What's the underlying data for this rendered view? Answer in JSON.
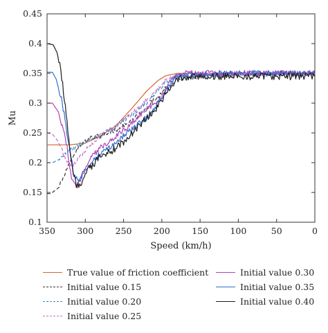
{
  "chart_data": {
    "type": "line",
    "xlabel": "Speed (km/h)",
    "ylabel": "Mu",
    "xlim": [
      350,
      0
    ],
    "ylim": [
      0.1,
      0.45
    ],
    "x_ticks": [
      350,
      300,
      250,
      200,
      150,
      100,
      50,
      0
    ],
    "y_ticks": [
      0.1,
      0.15,
      0.2,
      0.25,
      0.3,
      0.35,
      0.4,
      0.45
    ],
    "y_tick_labels": [
      "0.1",
      "0.15",
      "0.2",
      "0.25",
      "0.3",
      "0.35",
      "0.4",
      "0.45"
    ],
    "grid": false,
    "legend_position": "bottom",
    "series": [
      {
        "name": "True value of friction coefficient",
        "color": "#d9622b",
        "style": "solid",
        "noise": 0,
        "x": [
          350,
          330,
          320,
          300,
          280,
          260,
          240,
          220,
          205,
          195,
          180,
          150,
          100,
          50,
          0
        ],
        "y": [
          0.23,
          0.23,
          0.23,
          0.233,
          0.245,
          0.262,
          0.29,
          0.32,
          0.338,
          0.346,
          0.35,
          0.35,
          0.35,
          0.35,
          0.35
        ]
      },
      {
        "name": "Initial value 0.15",
        "color": "#333333",
        "style": "dashed",
        "noise": 0.004,
        "x": [
          350,
          345,
          335,
          325,
          315,
          305,
          295,
          280,
          260,
          240,
          225,
          210,
          195,
          180,
          150,
          100,
          50,
          0
        ],
        "y": [
          0.148,
          0.148,
          0.158,
          0.185,
          0.215,
          0.232,
          0.24,
          0.245,
          0.255,
          0.27,
          0.285,
          0.305,
          0.325,
          0.34,
          0.345,
          0.35,
          0.35,
          0.35
        ]
      },
      {
        "name": "Initial value 0.20",
        "color": "#3a86c8",
        "style": "dashed",
        "noise": 0.004,
        "x": [
          350,
          343,
          335,
          325,
          315,
          300,
          280,
          260,
          240,
          220,
          205,
          195,
          180,
          150,
          100,
          50,
          0
        ],
        "y": [
          0.2,
          0.2,
          0.205,
          0.215,
          0.225,
          0.235,
          0.245,
          0.262,
          0.28,
          0.3,
          0.32,
          0.335,
          0.345,
          0.348,
          0.35,
          0.35,
          0.35
        ]
      },
      {
        "name": "Initial value 0.25",
        "color": "#c86ac2",
        "style": "dashed",
        "noise": 0.004,
        "x": [
          350,
          343,
          335,
          325,
          318,
          310,
          300,
          280,
          260,
          240,
          220,
          205,
          195,
          180,
          150,
          100,
          50,
          0
        ],
        "y": [
          0.25,
          0.248,
          0.235,
          0.205,
          0.195,
          0.205,
          0.22,
          0.245,
          0.262,
          0.282,
          0.305,
          0.325,
          0.34,
          0.345,
          0.348,
          0.35,
          0.35,
          0.35
        ]
      },
      {
        "name": "Initial value 0.30",
        "color": "#b040b8",
        "style": "solid",
        "noise": 0.005,
        "x": [
          350,
          343,
          335,
          325,
          318,
          312,
          305,
          295,
          280,
          260,
          240,
          225,
          210,
          200,
          190,
          180,
          150,
          100,
          50,
          0
        ],
        "y": [
          0.3,
          0.3,
          0.285,
          0.235,
          0.175,
          0.16,
          0.175,
          0.205,
          0.225,
          0.245,
          0.265,
          0.285,
          0.3,
          0.31,
          0.335,
          0.35,
          0.35,
          0.35,
          0.35,
          0.35
        ]
      },
      {
        "name": "Initial value 0.35",
        "color": "#2f6fd0",
        "style": "solid",
        "noise": 0.005,
        "x": [
          350,
          343,
          338,
          330,
          322,
          315,
          308,
          300,
          285,
          270,
          255,
          240,
          225,
          210,
          195,
          180,
          150,
          100,
          50,
          0
        ],
        "y": [
          0.352,
          0.352,
          0.34,
          0.3,
          0.235,
          0.18,
          0.17,
          0.19,
          0.21,
          0.225,
          0.24,
          0.255,
          0.27,
          0.29,
          0.32,
          0.345,
          0.348,
          0.35,
          0.35,
          0.35
        ]
      },
      {
        "name": "Initial value 0.40",
        "color": "#1b1b1b",
        "style": "solid",
        "noise": 0.006,
        "x": [
          350,
          342,
          337,
          332,
          325,
          318,
          312,
          305,
          295,
          280,
          265,
          250,
          235,
          220,
          205,
          195,
          180,
          150,
          100,
          50,
          0
        ],
        "y": [
          0.4,
          0.398,
          0.385,
          0.355,
          0.28,
          0.2,
          0.162,
          0.165,
          0.19,
          0.21,
          0.22,
          0.235,
          0.255,
          0.275,
          0.295,
          0.315,
          0.34,
          0.345,
          0.345,
          0.345,
          0.345
        ]
      }
    ]
  }
}
